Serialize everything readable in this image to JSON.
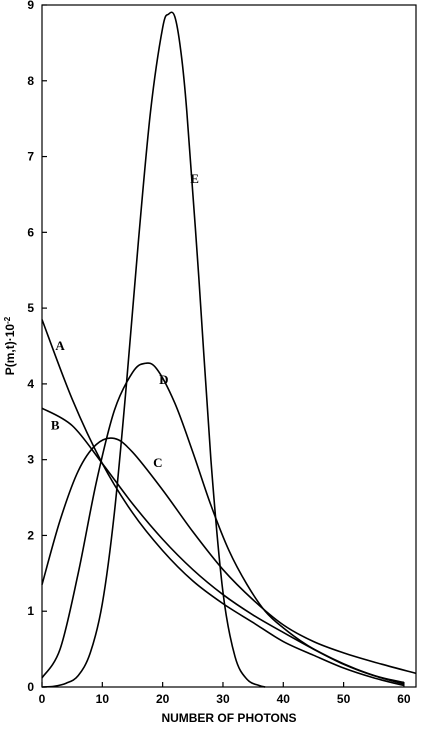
{
  "chart_data": {
    "type": "line",
    "title": "",
    "xlabel": "NUMBER OF PHOTONS",
    "ylabel": "P(m,t)·10",
    "ylabel_superscript": "-2",
    "xlim": [
      0,
      62
    ],
    "ylim": [
      0,
      9
    ],
    "xticks": [
      0,
      10,
      20,
      30,
      40,
      50,
      60
    ],
    "yticks": [
      0,
      1,
      2,
      3,
      4,
      5,
      6,
      7,
      8,
      9
    ],
    "grid": false,
    "legend": "none",
    "series": [
      {
        "name": "A",
        "x": [
          0,
          5,
          10,
          15,
          20,
          25,
          30,
          35,
          40,
          45,
          50,
          55,
          60
        ],
        "y": [
          4.85,
          3.8,
          2.95,
          2.3,
          1.8,
          1.4,
          1.1,
          0.85,
          0.6,
          0.42,
          0.25,
          0.12,
          0.02
        ]
      },
      {
        "name": "B",
        "x": [
          0,
          5,
          10,
          15,
          20,
          25,
          30,
          35,
          40,
          45,
          50,
          55,
          60
        ],
        "y": [
          3.68,
          3.45,
          2.95,
          2.42,
          1.95,
          1.55,
          1.22,
          0.95,
          0.72,
          0.5,
          0.3,
          0.15,
          0.04
        ]
      },
      {
        "name": "C",
        "x": [
          0,
          3,
          6,
          9,
          12,
          15,
          20,
          25,
          30,
          35,
          40,
          45,
          50,
          55,
          62
        ],
        "y": [
          1.35,
          2.2,
          2.85,
          3.2,
          3.28,
          3.1,
          2.6,
          2.05,
          1.55,
          1.15,
          0.82,
          0.6,
          0.45,
          0.33,
          0.18
        ]
      },
      {
        "name": "D",
        "x": [
          0,
          3,
          6,
          9,
          12,
          15,
          17,
          19,
          22,
          25,
          28,
          31,
          34,
          37,
          40,
          44,
          48,
          52,
          56,
          60
        ],
        "y": [
          0.12,
          0.5,
          1.5,
          2.7,
          3.65,
          4.15,
          4.27,
          4.2,
          3.75,
          3.1,
          2.4,
          1.8,
          1.35,
          1.0,
          0.78,
          0.55,
          0.38,
          0.24,
          0.13,
          0.06
        ]
      },
      {
        "name": "E",
        "x": [
          0,
          2,
          4,
          6,
          8,
          10,
          12,
          14,
          16,
          18,
          20,
          21,
          22,
          23,
          24,
          26,
          28,
          30,
          32,
          34,
          36,
          37
        ],
        "y": [
          0,
          0.01,
          0.05,
          0.15,
          0.45,
          1.1,
          2.3,
          4.0,
          5.9,
          7.6,
          8.7,
          8.88,
          8.85,
          8.4,
          7.6,
          5.4,
          3.0,
          1.25,
          0.4,
          0.1,
          0.02,
          0.0
        ]
      }
    ],
    "annotations": [
      {
        "text": "A",
        "x": 3.0,
        "y": 4.45
      },
      {
        "text": "B",
        "x": 2.2,
        "y": 3.4
      },
      {
        "text": "C",
        "x": 19.2,
        "y": 2.9
      },
      {
        "text": "D",
        "x": 20.2,
        "y": 4.0
      },
      {
        "text": "E",
        "x": 25.3,
        "y": 6.65
      }
    ]
  }
}
